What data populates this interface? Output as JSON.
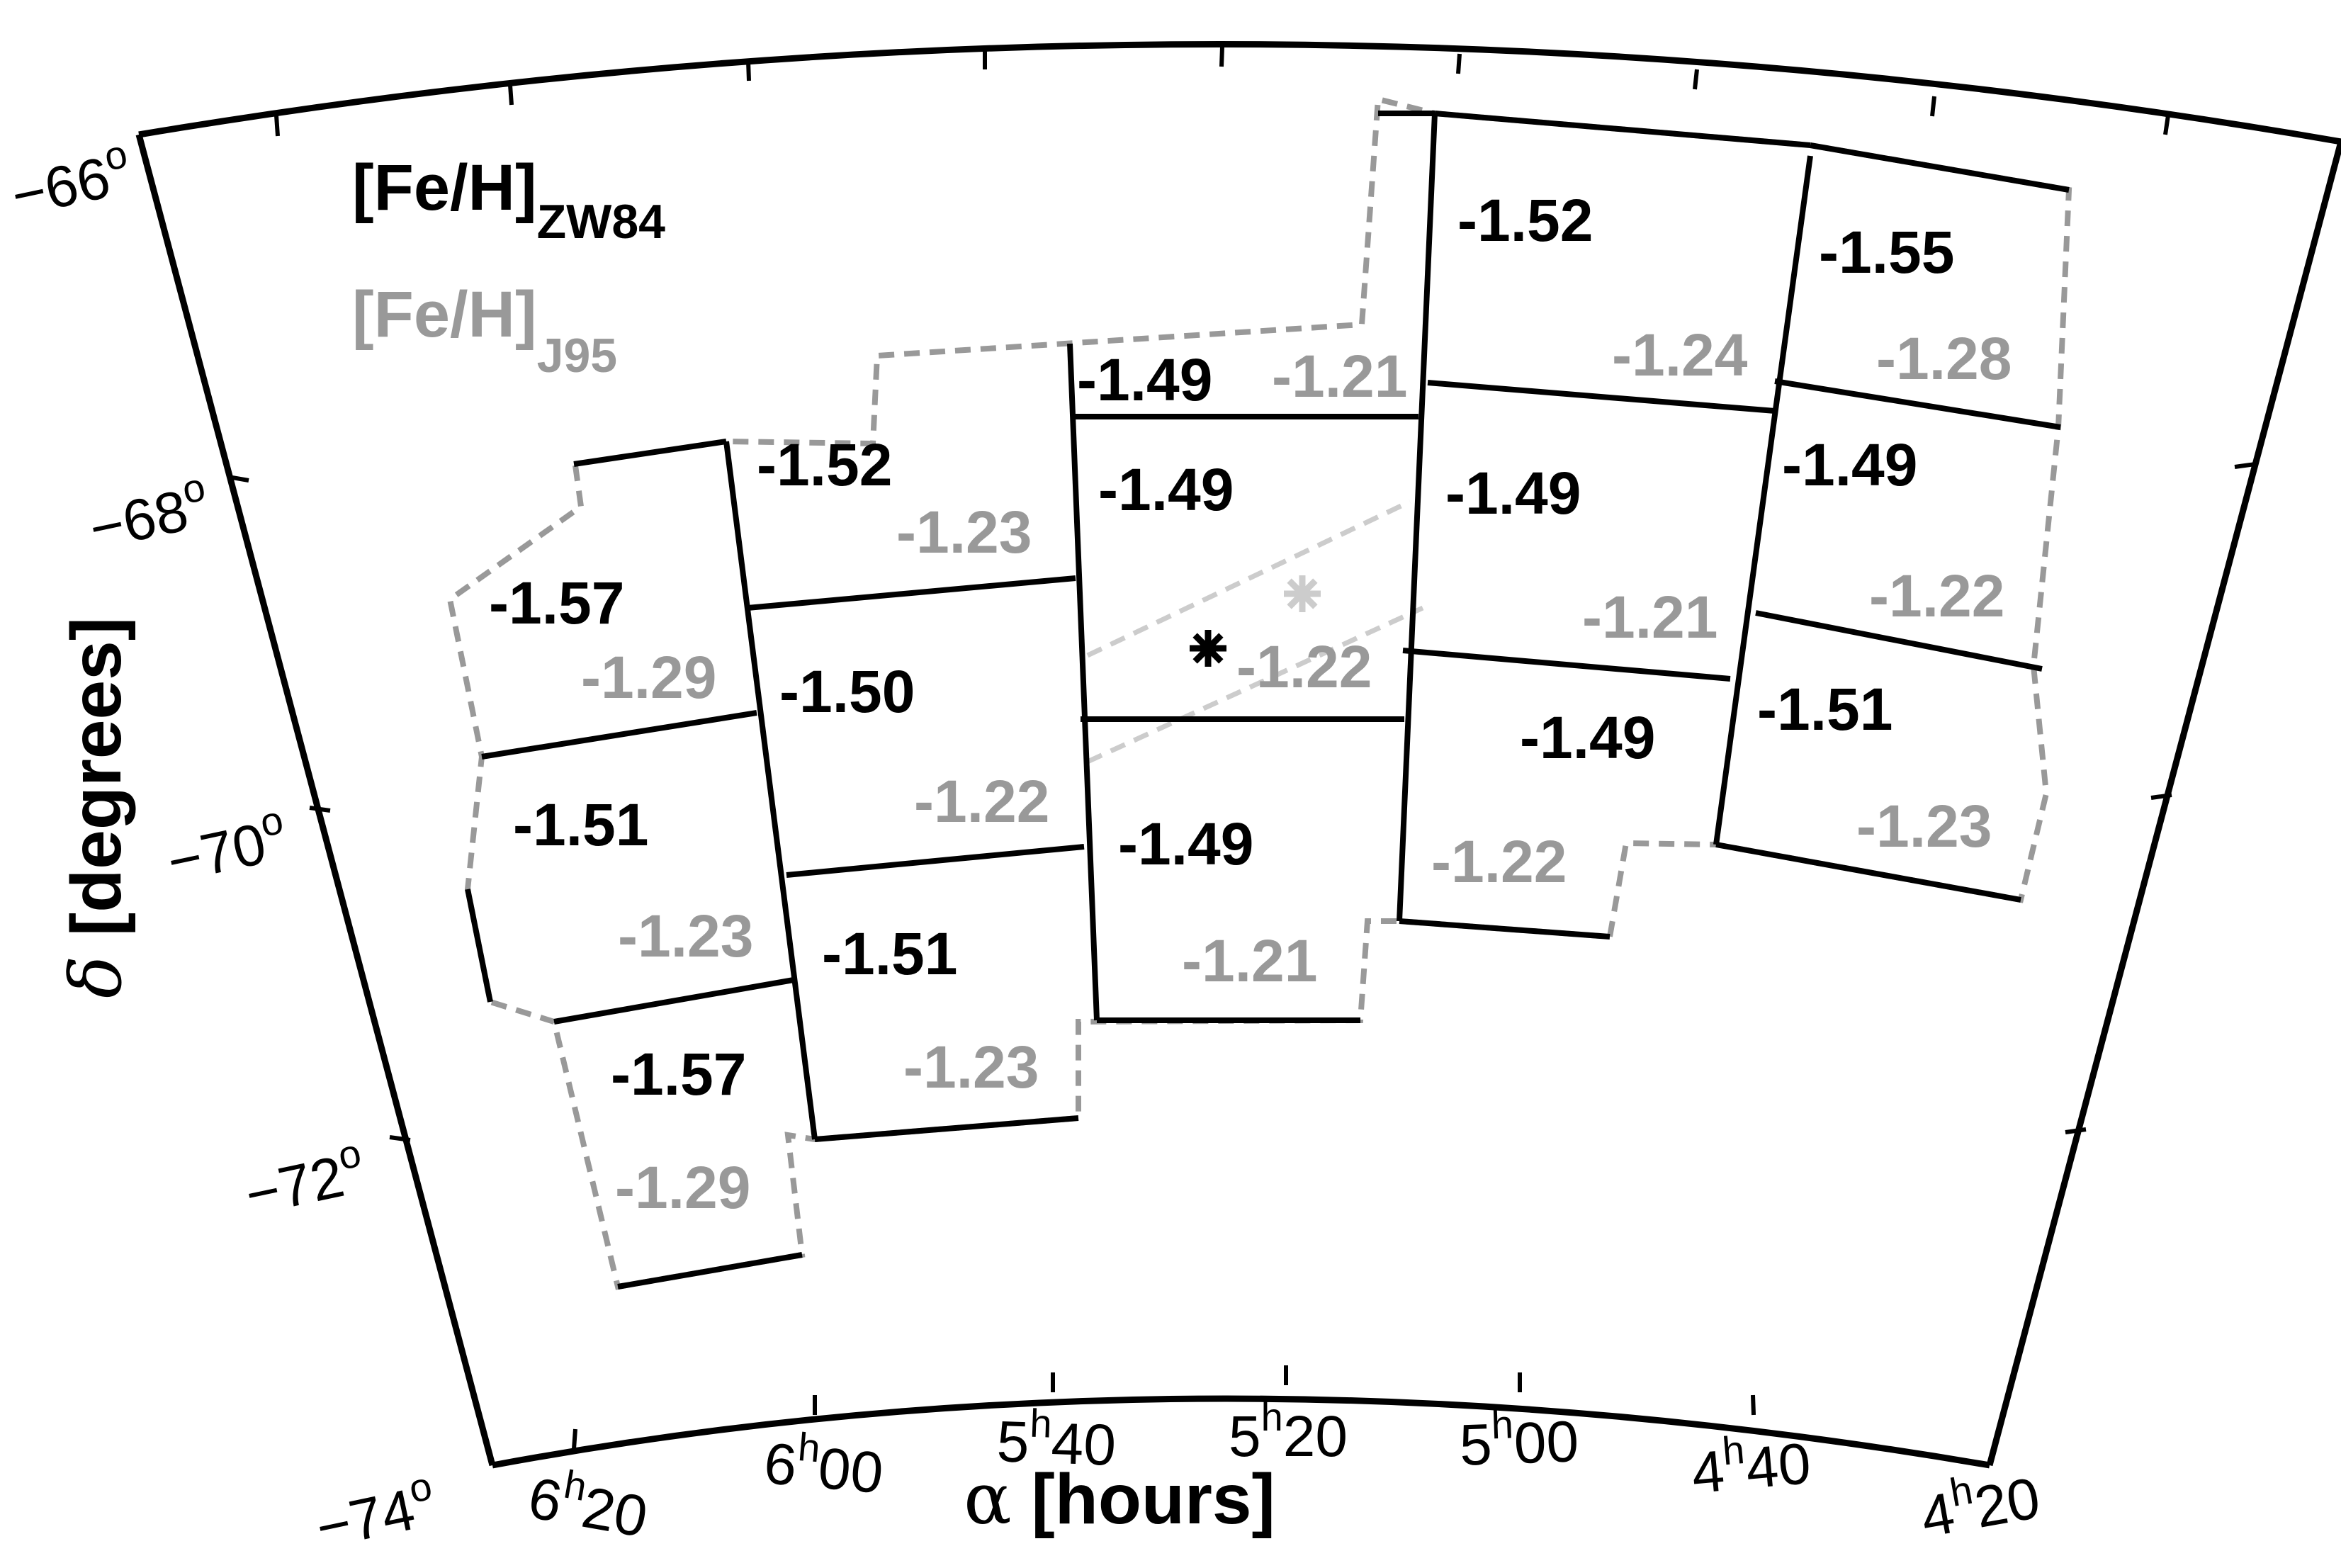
{
  "legend": {
    "primary": {
      "base": "[Fe/H]",
      "sub": "ZW84",
      "color": "#000000"
    },
    "secondary": {
      "base": "[Fe/H]",
      "sub": "J95",
      "color": "#999999"
    }
  },
  "axes": {
    "xlabel": {
      "symbol": "α",
      "text": " [hours]"
    },
    "ylabel": {
      "symbol": "δ",
      "text": " [degrees]"
    },
    "x_range_hours": [
      4.333,
      6.5
    ],
    "y_range_deg": [
      -74,
      -66
    ],
    "x_ticks": [
      {
        "value": 6.333,
        "h": "6",
        "m": "20"
      },
      {
        "value": 6.0,
        "h": "6",
        "m": "00"
      },
      {
        "value": 5.667,
        "h": "5",
        "m": "40"
      },
      {
        "value": 5.333,
        "h": "5",
        "m": "20"
      },
      {
        "value": 5.0,
        "h": "5",
        "m": "00"
      },
      {
        "value": 4.667,
        "h": "4",
        "m": "40"
      },
      {
        "value": 4.333,
        "h": "4",
        "m": "20"
      }
    ],
    "y_ticks": [
      {
        "value": -66,
        "label": "−66",
        "unit": "o"
      },
      {
        "value": -68,
        "label": "−68",
        "unit": "o"
      },
      {
        "value": -70,
        "label": "−70",
        "unit": "o"
      },
      {
        "value": -72,
        "label": "−72",
        "unit": "o"
      },
      {
        "value": -74,
        "label": "−74",
        "unit": "o"
      }
    ]
  },
  "chart_data": {
    "type": "table",
    "description_source": "per-field metallicity values in sky map (ZW84 black, J95 grey)",
    "fields": [
      {
        "zw84": "-1.57",
        "j95": "-1.29"
      },
      {
        "zw84": "-1.51",
        "j95": "-1.23"
      },
      {
        "zw84": "-1.57",
        "j95": "-1.29"
      },
      {
        "zw84": "-1.52",
        "j95": "-1.23"
      },
      {
        "zw84": "-1.50",
        "j95": "-1.22"
      },
      {
        "zw84": "-1.51",
        "j95": "-1.23"
      },
      {
        "zw84": "-1.49",
        "j95": "-1.21"
      },
      {
        "zw84": "-1.49",
        "j95": "-1.22"
      },
      {
        "zw84": "-1.49",
        "j95": "-1.21"
      },
      {
        "zw84": "-1.52",
        "j95": "-1.24"
      },
      {
        "zw84": "-1.49",
        "j95": "-1.21"
      },
      {
        "zw84": "-1.49",
        "j95": "-1.22"
      },
      {
        "zw84": "-1.55",
        "j95": "-1.28"
      },
      {
        "zw84": "-1.49",
        "j95": "-1.22"
      },
      {
        "zw84": "-1.51",
        "j95": "-1.23"
      }
    ],
    "centers": [
      {
        "series": "ZW84",
        "color": "#000000"
      },
      {
        "series": "J95",
        "color": "#cccccc"
      }
    ]
  }
}
